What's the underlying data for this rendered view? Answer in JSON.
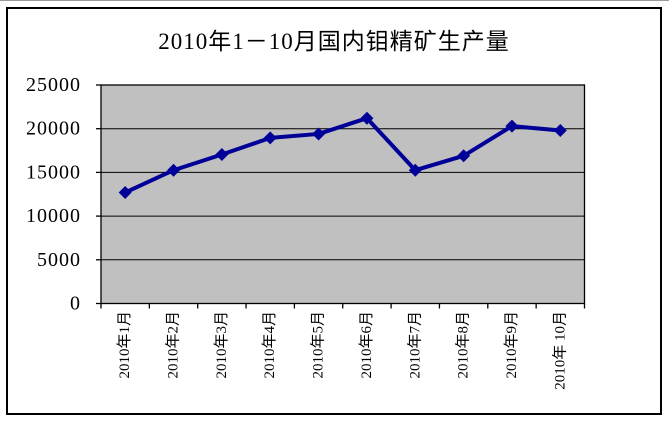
{
  "chart_data": {
    "type": "line",
    "title": "2010年1－10月国内钼精矿生产量",
    "categories": [
      "2010年1月",
      "2010年2月",
      "2010年3月",
      "2010年4月",
      "2010年5月",
      "2010年6月",
      "2010年7月",
      "2010年8月",
      "2010年9月",
      "2010年 10月"
    ],
    "values": [
      12700,
      15250,
      17050,
      18950,
      19400,
      21200,
      15250,
      16900,
      20300,
      19800
    ],
    "xlabel": "",
    "ylabel": "",
    "ylim": [
      0,
      25000
    ],
    "ytick_step": 5000,
    "ytick_labels": [
      "0",
      "5000",
      "10000",
      "15000",
      "20000",
      "25000"
    ],
    "grid": true,
    "legend": "none",
    "marker": "diamond",
    "colors": {
      "line": "#000099",
      "marker": "#000099",
      "plot_bg": "#c0c0c0",
      "gridline": "#000000",
      "axis": "#000000",
      "chart_bg": "#ffffff",
      "frame_border": "#000000"
    }
  }
}
